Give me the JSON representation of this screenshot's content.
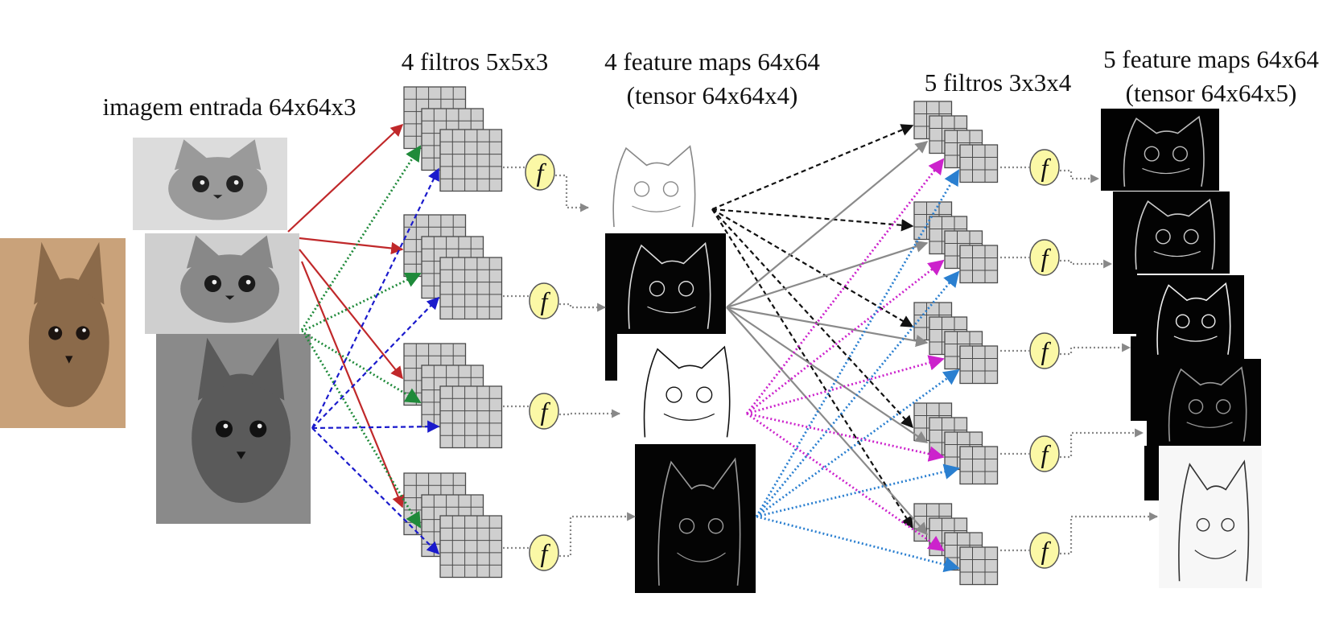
{
  "labels": {
    "input": "imagem entrada 64x64x3",
    "filters1": "4 filtros 5x5x3",
    "maps1_line1": "4 feature maps 64x64",
    "maps1_line2": "(tensor 64x64x4)",
    "filters2": "5 filtros 3x3x4",
    "maps2_line1": "5 feature maps 64x64",
    "maps2_line2": "(tensor 64x64x5)"
  },
  "activation_symbol": "f",
  "colors": {
    "red": "#c0282a",
    "green": "#1f8a3a",
    "blue": "#1a1acc",
    "black": "#111111",
    "gray": "#8a8a8a",
    "magenta": "#cc22cc",
    "lightblue": "#2a7fd0",
    "activation_fill": "#fbf8a6",
    "grid_fill": "#cfcfcf"
  }
}
